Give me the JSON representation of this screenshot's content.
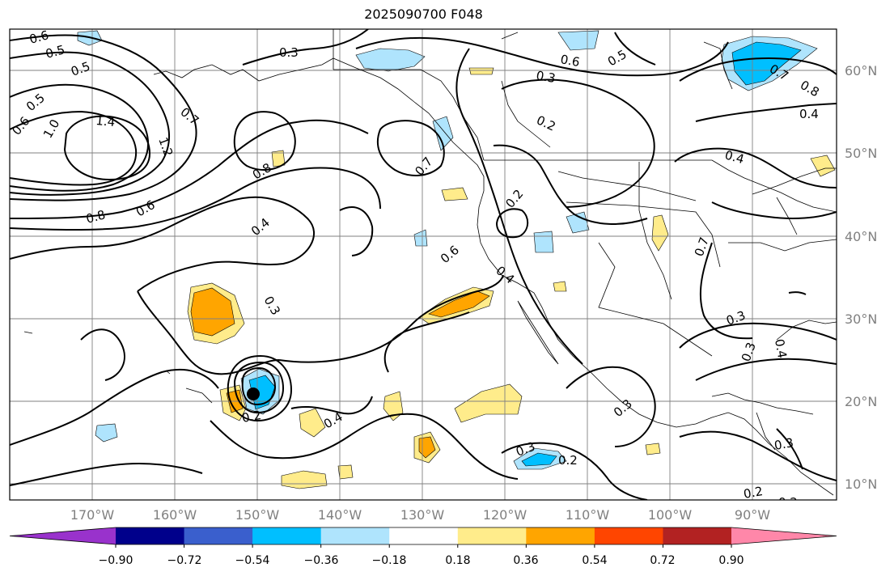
{
  "title": "2025090700 F048",
  "map": {
    "lat_labels": [
      "60°N",
      "50°N",
      "40°N",
      "30°N",
      "20°N",
      "10°N"
    ],
    "lon_labels": [
      "170°W",
      "160°W",
      "150°W",
      "140°W",
      "130°W",
      "120°W",
      "110°W",
      "100°W",
      "90°W"
    ],
    "contour_labels": [
      "0.6",
      "0.5",
      "0.5",
      "0.3",
      "0.3",
      "0.6",
      "0.5",
      "0.7",
      "0.8",
      "0.4",
      "0.4",
      "1.4",
      "1.2",
      "1.0",
      "0.5",
      "0.6",
      "0.7",
      "0.8",
      "0.8",
      "0.6",
      "0.4",
      "0.7",
      "0.2",
      "0.2",
      "0.6",
      "0.4",
      "0.3",
      "0.7",
      "0.3",
      "0.3",
      "0.4",
      "0.2",
      "0.4",
      "0.3",
      "0.3",
      "0.2",
      "0.3",
      "0.2",
      "0.2"
    ]
  },
  "colorbar": {
    "tick_labels": [
      "−0.90",
      "−0.72",
      "−0.54",
      "−0.36",
      "−0.18",
      "0.18",
      "0.36",
      "0.54",
      "0.72",
      "0.90"
    ],
    "colors": [
      "#9932cc",
      "#00008b",
      "#3a5fcd",
      "#00bfff",
      "#afe4fd",
      "#ffffff",
      "#ffec8b",
      "#ffa500",
      "#ff4500",
      "#b22222",
      "#ff87a9"
    ]
  }
}
